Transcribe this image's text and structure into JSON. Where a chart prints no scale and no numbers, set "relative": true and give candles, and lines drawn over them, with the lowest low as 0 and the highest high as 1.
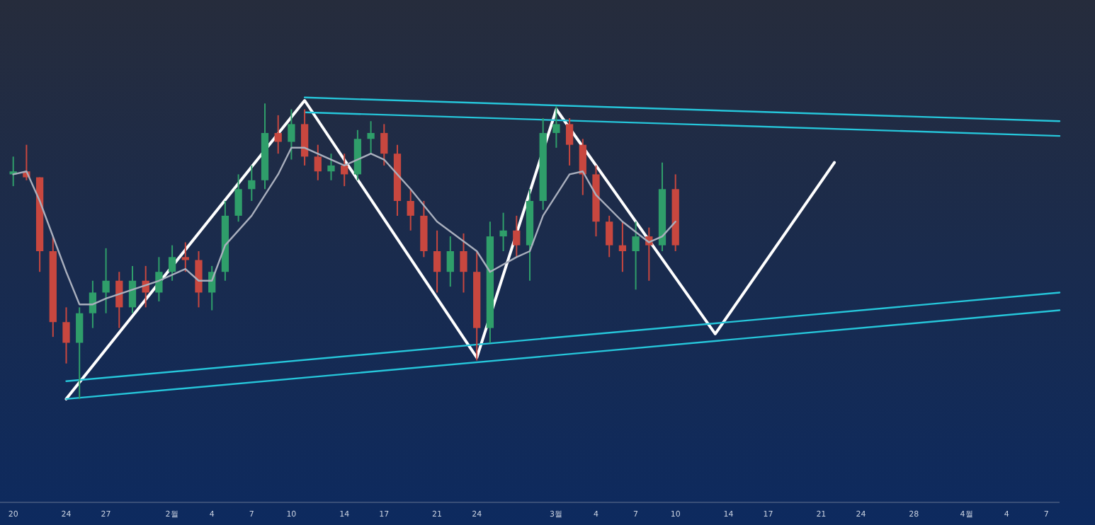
{
  "chart_data": {
    "type": "candlestick",
    "relative": true,
    "tick_labels": "x",
    "grid": false,
    "x": [
      "--01-20",
      "--01-21",
      "--01-22",
      "--01-23",
      "--01-24",
      "--01-25",
      "--01-26",
      "--01-27",
      "--01-28",
      "--01-29",
      "--01-30",
      "--01-31",
      "--02-01",
      "--02-02",
      "--02-03",
      "--02-04",
      "--02-05",
      "--02-06",
      "--02-07",
      "--02-08",
      "--02-09",
      "--02-10",
      "--02-11",
      "--02-12",
      "--02-13",
      "--02-14",
      "--02-15",
      "--02-16",
      "--02-17",
      "--02-18",
      "--02-19",
      "--02-20",
      "--02-21",
      "--02-22",
      "--02-23",
      "--02-24",
      "--02-25",
      "--02-26",
      "--02-27",
      "--02-28",
      "--02-29",
      "--03-01",
      "--03-02",
      "--03-03",
      "--03-04",
      "--03-05",
      "--03-06",
      "--03-07",
      "--03-08",
      "--03-09",
      "--03-10"
    ],
    "ohlc": [
      [
        0.76,
        0.82,
        0.72,
        0.77
      ],
      [
        0.77,
        0.86,
        0.74,
        0.75
      ],
      [
        0.75,
        0.75,
        0.43,
        0.5
      ],
      [
        0.5,
        0.55,
        0.21,
        0.26
      ],
      [
        0.26,
        0.31,
        0.12,
        0.19
      ],
      [
        0.19,
        0.31,
        0,
        0.29
      ],
      [
        0.29,
        0.4,
        0.24,
        0.36
      ],
      [
        0.36,
        0.51,
        0.29,
        0.4
      ],
      [
        0.4,
        0.43,
        0.24,
        0.31
      ],
      [
        0.31,
        0.45,
        0.29,
        0.4
      ],
      [
        0.4,
        0.45,
        0.31,
        0.36
      ],
      [
        0.36,
        0.48,
        0.33,
        0.43
      ],
      [
        0.43,
        0.52,
        0.4,
        0.48
      ],
      [
        0.48,
        0.53,
        0.43,
        0.47
      ],
      [
        0.47,
        0.5,
        0.31,
        0.36
      ],
      [
        0.36,
        0.45,
        0.3,
        0.43
      ],
      [
        0.43,
        0.67,
        0.4,
        0.62
      ],
      [
        0.62,
        0.76,
        0.6,
        0.71
      ],
      [
        0.71,
        0.79,
        0.67,
        0.74
      ],
      [
        0.74,
        1,
        0.71,
        0.9
      ],
      [
        0.9,
        0.96,
        0.83,
        0.87
      ],
      [
        0.87,
        0.98,
        0.81,
        0.93
      ],
      [
        0.93,
        0.98,
        0.79,
        0.82
      ],
      [
        0.82,
        0.86,
        0.74,
        0.77
      ],
      [
        0.77,
        0.83,
        0.74,
        0.79
      ],
      [
        0.79,
        0.83,
        0.72,
        0.76
      ],
      [
        0.76,
        0.91,
        0.74,
        0.88
      ],
      [
        0.88,
        0.94,
        0.83,
        0.9
      ],
      [
        0.9,
        0.93,
        0.79,
        0.83
      ],
      [
        0.83,
        0.86,
        0.62,
        0.67
      ],
      [
        0.67,
        0.71,
        0.57,
        0.62
      ],
      [
        0.62,
        0.67,
        0.48,
        0.5
      ],
      [
        0.5,
        0.57,
        0.36,
        0.43
      ],
      [
        0.43,
        0.55,
        0.38,
        0.5
      ],
      [
        0.5,
        0.56,
        0.36,
        0.43
      ],
      [
        0.43,
        0.5,
        0.13,
        0.24
      ],
      [
        0.24,
        0.6,
        0.19,
        0.55
      ],
      [
        0.55,
        0.63,
        0.5,
        0.57
      ],
      [
        0.57,
        0.62,
        0.48,
        0.52
      ],
      [
        0.52,
        0.71,
        0.4,
        0.67
      ],
      [
        0.67,
        0.95,
        0.64,
        0.9
      ],
      [
        0.9,
        0.99,
        0.85,
        0.93
      ],
      [
        0.93,
        0.95,
        0.79,
        0.86
      ],
      [
        0.86,
        0.88,
        0.69,
        0.76
      ],
      [
        0.76,
        0.79,
        0.55,
        0.6
      ],
      [
        0.6,
        0.62,
        0.48,
        0.52
      ],
      [
        0.52,
        0.6,
        0.43,
        0.5
      ],
      [
        0.5,
        0.6,
        0.37,
        0.55
      ],
      [
        0.55,
        0.58,
        0.4,
        0.52
      ],
      [
        0.52,
        0.8,
        0.5,
        0.71
      ],
      [
        0.71,
        0.76,
        0.5,
        0.52
      ]
    ],
    "xlim": [
      "--01-19",
      "--04-08"
    ],
    "xticks": [
      {
        "value": "--01-20",
        "label": "20"
      },
      {
        "value": "--01-24",
        "label": "24"
      },
      {
        "value": "--01-27",
        "label": "27"
      },
      {
        "value": "--02-01",
        "label": "2월"
      },
      {
        "value": "--02-04",
        "label": "4"
      },
      {
        "value": "--02-07",
        "label": "7"
      },
      {
        "value": "--02-10",
        "label": "10"
      },
      {
        "value": "--02-14",
        "label": "14"
      },
      {
        "value": "--02-17",
        "label": "17"
      },
      {
        "value": "--02-21",
        "label": "21"
      },
      {
        "value": "--02-24",
        "label": "24"
      },
      {
        "value": "--03-01",
        "label": "3월"
      },
      {
        "value": "--03-04",
        "label": "4"
      },
      {
        "value": "--03-07",
        "label": "7"
      },
      {
        "value": "--03-10",
        "label": "10"
      },
      {
        "value": "--03-14",
        "label": "14"
      },
      {
        "value": "--03-17",
        "label": "17"
      },
      {
        "value": "--03-21",
        "label": "21"
      },
      {
        "value": "--03-24",
        "label": "24"
      },
      {
        "value": "--03-28",
        "label": "28"
      },
      {
        "value": "--04-01",
        "label": "4월"
      },
      {
        "value": "--04-04",
        "label": "4"
      },
      {
        "value": "--04-07",
        "label": "7"
      }
    ],
    "series": [
      {
        "type": "line",
        "color": "#a9afbd",
        "x": [
          "--01-20",
          "--01-21",
          "--01-22",
          "--01-24",
          "--01-25",
          "--01-26",
          "--01-27",
          "--01-29",
          "--01-31",
          "--02-02",
          "--02-03",
          "--02-04",
          "--02-05",
          "--02-07",
          "--02-09",
          "--02-10",
          "--02-11",
          "--02-13",
          "--02-14",
          "--02-16",
          "--02-17",
          "--02-19",
          "--02-21",
          "--02-24",
          "--02-25",
          "--02-27",
          "--02-28",
          "--02-29",
          "--03-02",
          "--03-03",
          "--03-04",
          "--03-06",
          "--03-08",
          "--03-09",
          "--03-10"
        ],
        "values": [
          0.76,
          0.77,
          0.67,
          0.43,
          0.32,
          0.32,
          0.34,
          0.37,
          0.4,
          0.44,
          0.4,
          0.4,
          0.52,
          0.62,
          0.76,
          0.85,
          0.85,
          0.81,
          0.79,
          0.83,
          0.81,
          0.71,
          0.6,
          0.5,
          0.43,
          0.48,
          0.5,
          0.62,
          0.76,
          0.77,
          0.69,
          0.6,
          0.53,
          0.55,
          0.6
        ]
      },
      {
        "type": "line",
        "color": "#ffffff",
        "x": [
          "--01-24",
          "--02-11",
          "--02-24",
          "--03-01",
          "--03-13",
          "--03-22"
        ],
        "values": [
          0,
          1.01,
          0.14,
          0.98,
          0.22,
          0.8
        ]
      },
      {
        "type": "line",
        "color": "#26c6da",
        "x": [
          "--02-11",
          "--04-08"
        ],
        "values": [
          1.02,
          0.94
        ]
      },
      {
        "type": "line",
        "color": "#26c6da",
        "x": [
          "--02-11",
          "--04-08"
        ],
        "values": [
          0.97,
          0.89
        ]
      },
      {
        "type": "line",
        "color": "#26c6da",
        "x": [
          "--01-24",
          "--04-08"
        ],
        "values": [
          0.06,
          0.36
        ]
      },
      {
        "type": "line",
        "color": "#26c6da",
        "x": [
          "--01-24",
          "--04-08"
        ],
        "values": [
          0,
          0.3
        ]
      }
    ]
  }
}
